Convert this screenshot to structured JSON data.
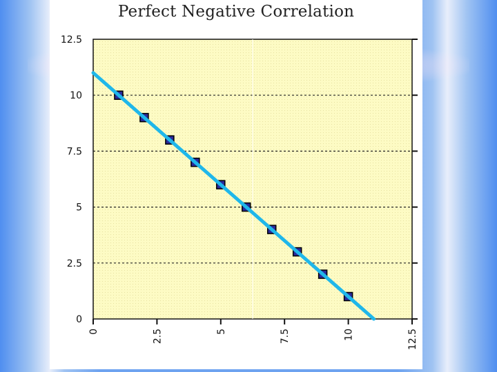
{
  "chart_data": {
    "type": "scatter",
    "title": "Perfect Negative Correlation",
    "xlabel": "",
    "ylabel": "",
    "xlim": [
      0,
      12.5
    ],
    "ylim": [
      0,
      12.5
    ],
    "x_ticks": [
      "0",
      "2.5",
      "5",
      "7.5",
      "10",
      "12.5"
    ],
    "y_ticks": [
      "0",
      "2.5",
      "5",
      "7.5",
      "10",
      "12.5"
    ],
    "grid": "horizontal dashed",
    "points": [
      {
        "x": 1,
        "y": 10
      },
      {
        "x": 2,
        "y": 9
      },
      {
        "x": 3,
        "y": 8
      },
      {
        "x": 4,
        "y": 7
      },
      {
        "x": 5,
        "y": 6
      },
      {
        "x": 6,
        "y": 5
      },
      {
        "x": 7,
        "y": 4
      },
      {
        "x": 8,
        "y": 3
      },
      {
        "x": 9,
        "y": 2
      },
      {
        "x": 10,
        "y": 1
      }
    ],
    "trend_line": {
      "x": [
        0,
        11
      ],
      "y": [
        11,
        0
      ]
    },
    "colors": {
      "plot_background": "#fdfbc4",
      "marker": "#2a2a9a",
      "trend_line": "#1fb7ea"
    }
  }
}
